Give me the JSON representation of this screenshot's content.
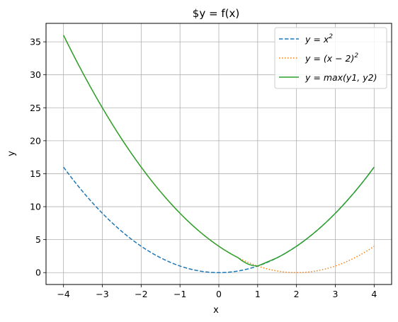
{
  "chart_data": {
    "type": "line",
    "title": "$y = f(x)",
    "xlabel": "x",
    "ylabel": "y",
    "xlim": [
      -4.45,
      4.45
    ],
    "ylim": [
      -1.8,
      37.8
    ],
    "xticks": [
      -4,
      -3,
      -2,
      -1,
      0,
      1,
      2,
      3,
      4
    ],
    "yticks": [
      0,
      5,
      10,
      15,
      20,
      25,
      30,
      35
    ],
    "grid": true,
    "legend": {
      "position": "top-right"
    },
    "x": [
      -4,
      -3.5,
      -3,
      -2.5,
      -2,
      -1.5,
      -1,
      -0.5,
      0,
      0.5,
      1,
      1.5,
      2,
      2.5,
      3,
      3.5,
      4
    ],
    "series": [
      {
        "name": "y = x²",
        "label_text": "y = x",
        "label_sup": "2",
        "style": "dashed",
        "color": "#1f77b4",
        "values": [
          16,
          12.25,
          9,
          6.25,
          4,
          2.25,
          1,
          0.25,
          0,
          0.25,
          1,
          2.25,
          4,
          6.25,
          9,
          12.25,
          16
        ]
      },
      {
        "name": "y = (x − 2)²",
        "label_text": "y = (x − 2)",
        "label_sup": "2",
        "style": "dotted",
        "color": "#ff7f0e",
        "values": [
          36,
          30.25,
          25,
          20.25,
          16,
          12.25,
          9,
          6.25,
          4,
          2.25,
          1,
          0.25,
          0,
          0.25,
          1,
          2.25,
          4
        ]
      },
      {
        "name": "y = max(y1, y2)",
        "label_text": "y = max(y1, y2)",
        "label_sup": "",
        "style": "solid",
        "color": "#2ca02c",
        "values": [
          36,
          30.25,
          25,
          20.25,
          16,
          12.25,
          9,
          6.25,
          4,
          2.25,
          1,
          2.25,
          4,
          6.25,
          9,
          12.25,
          16
        ]
      }
    ]
  }
}
